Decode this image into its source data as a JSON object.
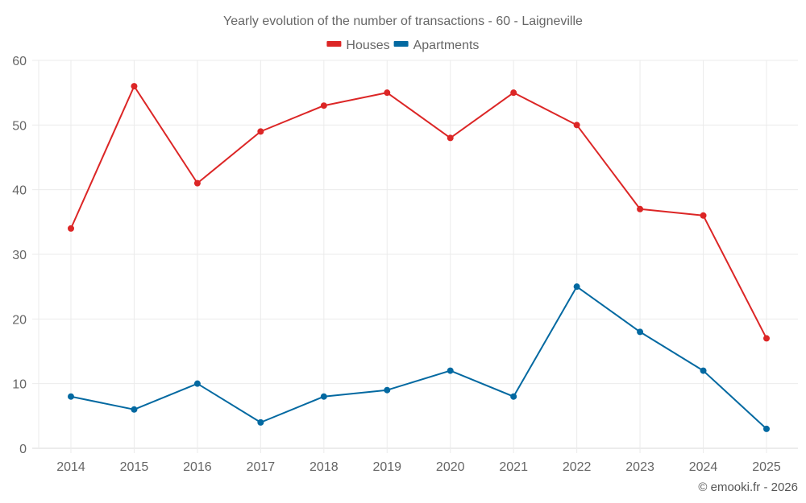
{
  "chart_data": {
    "type": "line",
    "title": "Yearly evolution of the number of transactions - 60 - Laigneville",
    "xlabel": "",
    "ylabel": "",
    "categories": [
      "2014",
      "2015",
      "2016",
      "2017",
      "2018",
      "2019",
      "2020",
      "2021",
      "2022",
      "2023",
      "2024",
      "2025"
    ],
    "ylim": [
      0,
      60
    ],
    "yticks": [
      0,
      10,
      20,
      30,
      40,
      50,
      60
    ],
    "grid": true,
    "legend_position": "top-center",
    "series": [
      {
        "name": "Houses",
        "color": "#dc2626",
        "values": [
          34,
          56,
          41,
          49,
          53,
          55,
          48,
          55,
          50,
          37,
          36,
          17
        ]
      },
      {
        "name": "Apartments",
        "color": "#0369a1",
        "values": [
          8,
          6,
          10,
          4,
          8,
          9,
          12,
          8,
          25,
          18,
          12,
          3
        ]
      }
    ],
    "credit": "© emooki.fr - 2026"
  }
}
